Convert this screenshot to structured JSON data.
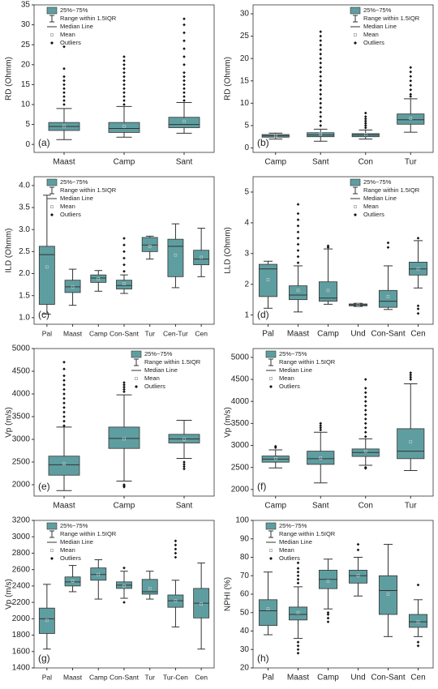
{
  "chart_data": [
    {
      "type": "box",
      "label": "(a)",
      "ylabel": "RD (Ohmm)",
      "color": "#5f9ea0",
      "legend_position": "top-left",
      "legend": [
        "25%~75%",
        "Range within 1.5IQR",
        "Median Line",
        "Mean",
        "Outliers"
      ],
      "ylim": [
        -2,
        35
      ],
      "yticks": [
        0,
        5,
        10,
        15,
        20,
        25,
        30,
        35
      ],
      "categories": [
        "Maast",
        "Camp",
        "Sant"
      ],
      "boxes": [
        {
          "whisker_low": 1.2,
          "q1": 3.5,
          "median": 4.5,
          "q3": 5.5,
          "whisker_high": 9,
          "mean": 4.6,
          "outliers": [
            10,
            11,
            12,
            13,
            14,
            15,
            16,
            17,
            19,
            24.5
          ]
        },
        {
          "whisker_low": 1.8,
          "q1": 3,
          "median": 4,
          "q3": 5.5,
          "whisker_high": 9.5,
          "mean": 4.5,
          "outliers": [
            10,
            11,
            12,
            13,
            14,
            15,
            16,
            17,
            18,
            19,
            20,
            21,
            22
          ]
        },
        {
          "whisker_low": 2.8,
          "q1": 4.2,
          "median": 5,
          "q3": 6.8,
          "whisker_high": 10.5,
          "mean": 5.8,
          "outliers": [
            11,
            12,
            13,
            14,
            15,
            16,
            17,
            18,
            20,
            22,
            24,
            26,
            28,
            30,
            31.5
          ]
        }
      ]
    },
    {
      "type": "box",
      "label": "(b)",
      "ylabel": "RD (Ohmm)",
      "color": "#5f9ea0",
      "legend_position": "top-right",
      "legend": [
        "25%~75%",
        "Range within 1.5IQR",
        "Median Line",
        "Mean",
        "Outliers"
      ],
      "ylim": [
        -1,
        32
      ],
      "yticks": [
        0,
        5,
        10,
        15,
        20,
        25,
        30
      ],
      "categories": [
        "Camp",
        "Sant",
        "Con",
        "Tur"
      ],
      "boxes": [
        {
          "whisker_low": 2,
          "q1": 2.4,
          "median": 2.7,
          "q3": 3,
          "whisker_high": 3.3,
          "mean": 2.7,
          "outliers": []
        },
        {
          "whisker_low": 1.5,
          "q1": 2.5,
          "median": 2.9,
          "q3": 3.4,
          "whisker_high": 4.2,
          "mean": 3.1,
          "outliers": [
            5,
            6,
            7,
            8,
            9,
            10,
            11,
            12,
            13,
            14,
            15,
            16,
            17,
            18,
            19,
            20,
            21,
            22,
            23,
            24,
            25,
            26
          ]
        },
        {
          "whisker_low": 2,
          "q1": 2.5,
          "median": 2.9,
          "q3": 3.2,
          "whisker_high": 4,
          "mean": 3,
          "outliers": [
            4.5,
            5,
            5.5,
            6,
            6.5,
            7,
            7.8
          ]
        },
        {
          "whisker_low": 3.5,
          "q1": 5.3,
          "median": 6.3,
          "q3": 7.6,
          "whisker_high": 11,
          "mean": 6.6,
          "outliers": [
            11.5,
            12,
            13,
            14,
            15,
            16,
            17,
            18
          ]
        }
      ]
    },
    {
      "type": "box",
      "label": "(c)",
      "ylabel": "ILD (Ohmm)",
      "color": "#5f9ea0",
      "legend_position": "top-left",
      "legend": [
        "25%~75%",
        "Range within 1.5IQR",
        "Median Line",
        "Mean",
        "Outliers"
      ],
      "ylim": [
        0.85,
        4.2
      ],
      "yticks": [
        {
          "value": 1,
          "label": "1.0"
        },
        1.5,
        {
          "value": 2,
          "label": "2.0"
        },
        2.5,
        {
          "value": 3,
          "label": "3.0"
        },
        3.5,
        {
          "value": 4,
          "label": "4.0"
        }
      ],
      "categories": [
        "Pal",
        "Maast",
        "Camp",
        "Con-Sant",
        "Tur",
        "Cen-Tur",
        "Cen"
      ],
      "boxes": [
        {
          "whisker_low": 1.08,
          "q1": 1.3,
          "median": 2.43,
          "q3": 2.62,
          "whisker_high": 3.78,
          "mean": 2.15,
          "outliers": []
        },
        {
          "whisker_low": 1.28,
          "q1": 1.57,
          "median": 1.7,
          "q3": 1.85,
          "whisker_high": 2.1,
          "mean": 1.7,
          "outliers": []
        },
        {
          "whisker_low": 1.6,
          "q1": 1.8,
          "median": 1.9,
          "q3": 1.97,
          "whisker_high": 2.07,
          "mean": 1.88,
          "outliers": []
        },
        {
          "whisker_low": 1.55,
          "q1": 1.65,
          "median": 1.73,
          "q3": 1.85,
          "whisker_high": 1.97,
          "mean": 1.77,
          "outliers": [
            2.05,
            2.2,
            2.35,
            2.5,
            2.65,
            2.8
          ]
        },
        {
          "whisker_low": 2.33,
          "q1": 2.5,
          "median": 2.65,
          "q3": 2.82,
          "whisker_high": 2.85,
          "mean": 2.62,
          "outliers": []
        },
        {
          "whisker_low": 1.68,
          "q1": 1.93,
          "median": 2.62,
          "q3": 2.78,
          "whisker_high": 3.13,
          "mean": 2.42,
          "outliers": []
        },
        {
          "whisker_low": 1.93,
          "q1": 2.2,
          "median": 2.33,
          "q3": 2.53,
          "whisker_high": 3.03,
          "mean": 2.37,
          "outliers": []
        }
      ]
    },
    {
      "type": "box",
      "label": "(d)",
      "ylabel": "LLD (Ohmm)",
      "color": "#5f9ea0",
      "legend_position": "top-right",
      "legend": [
        "25%~75%",
        "Range within 1.5IQR",
        "Median Line",
        "Mean",
        "Outliers"
      ],
      "ylim": [
        0.7,
        5.5
      ],
      "yticks": [
        1,
        2,
        3,
        4,
        5
      ],
      "categories": [
        "Pal",
        "Maast",
        "Camp",
        "Und",
        "Con-Sant",
        "Cen"
      ],
      "boxes": [
        {
          "whisker_low": 1.22,
          "q1": 1.6,
          "median": 2.5,
          "q3": 2.65,
          "whisker_high": 2.75,
          "mean": 2.15,
          "outliers": []
        },
        {
          "whisker_low": 1.1,
          "q1": 1.5,
          "median": 1.65,
          "q3": 1.95,
          "whisker_high": 2.6,
          "mean": 1.8,
          "outliers": [
            2.7,
            2.9,
            3.1,
            3.3,
            3.5,
            3.7,
            3.9,
            4.1,
            4.3,
            4.6
          ]
        },
        {
          "whisker_low": 1.35,
          "q1": 1.45,
          "median": 1.55,
          "q3": 2.08,
          "whisker_high": 3.15,
          "mean": 1.8,
          "outliers": [
            3.2,
            3.25
          ]
        },
        {
          "whisker_low": 1.28,
          "q1": 1.3,
          "median": 1.33,
          "q3": 1.36,
          "whisker_high": 1.38,
          "mean": 1.33,
          "outliers": []
        },
        {
          "whisker_low": 1.18,
          "q1": 1.25,
          "median": 1.45,
          "q3": 1.8,
          "whisker_high": 2.6,
          "mean": 1.6,
          "outliers": [
            3.2,
            3.35
          ]
        },
        {
          "whisker_low": 1.88,
          "q1": 2.3,
          "median": 2.5,
          "q3": 2.72,
          "whisker_high": 3.42,
          "mean": 2.5,
          "outliers": [
            1.05,
            1.2,
            1.3,
            3.5
          ]
        }
      ]
    },
    {
      "type": "box",
      "label": "(e)",
      "ylabel": "Vp (m/s)",
      "color": "#5f9ea0",
      "legend_position": "top-right",
      "legend": [
        "25%~75%",
        "Range within 1.5IQR",
        "Median Line",
        "Mean",
        "Outliers"
      ],
      "ylim": [
        1750,
        5000
      ],
      "yticks": [
        2000,
        2500,
        3000,
        3500,
        4000,
        4500,
        5000
      ],
      "categories": [
        "Maast",
        "Camp",
        "Sant"
      ],
      "boxes": [
        {
          "whisker_low": 1870,
          "q1": 2210,
          "median": 2440,
          "q3": 2630,
          "whisker_high": 3270,
          "mean": 2460,
          "outliers": [
            3300,
            3400,
            3500,
            3600,
            3700,
            3800,
            3900,
            4000,
            4100,
            4200,
            4300,
            4400,
            4550,
            4700
          ]
        },
        {
          "whisker_low": 2080,
          "q1": 2800,
          "median": 3020,
          "q3": 3270,
          "whisker_high": 3980,
          "mean": 3010,
          "outliers": [
            1950,
            1980,
            2000,
            4050,
            4100,
            4150,
            4200,
            4250
          ]
        },
        {
          "whisker_low": 2580,
          "q1": 2920,
          "median": 3010,
          "q3": 3110,
          "whisker_high": 3420,
          "mean": 3000,
          "outliers": [
            2350,
            2400,
            2450,
            2500
          ]
        }
      ]
    },
    {
      "type": "box",
      "label": "(f)",
      "ylabel": "Vp (m/s)",
      "color": "#5f9ea0",
      "legend_position": "top-left",
      "legend": [
        "25%~75%",
        "Range within 1.5IQR",
        "Median Line",
        "Mean",
        "Outliers"
      ],
      "ylim": [
        1850,
        5200
      ],
      "yticks": [
        2000,
        2500,
        3000,
        3500,
        4000,
        4500,
        5000
      ],
      "categories": [
        "Camp",
        "Sant",
        "Con",
        "Tur"
      ],
      "boxes": [
        {
          "whisker_low": 2490,
          "q1": 2620,
          "median": 2690,
          "q3": 2760,
          "whisker_high": 2900,
          "mean": 2700,
          "outliers": [
            2950,
            2980
          ]
        },
        {
          "whisker_low": 2150,
          "q1": 2570,
          "median": 2700,
          "q3": 2870,
          "whisker_high": 3300,
          "mean": 2720,
          "outliers": [
            3350,
            3400,
            3450,
            3500
          ]
        },
        {
          "whisker_low": 2550,
          "q1": 2750,
          "median": 2840,
          "q3": 2920,
          "whisker_high": 3150,
          "mean": 2870,
          "outliers": [
            2480,
            2500,
            3200,
            3300,
            3400,
            3500,
            3600,
            3700,
            3800,
            3900,
            4000,
            4100,
            4200,
            4300,
            4500
          ]
        },
        {
          "whisker_low": 2430,
          "q1": 2700,
          "median": 2870,
          "q3": 3380,
          "whisker_high": 4400,
          "mean": 3080,
          "outliers": [
            4500,
            4550,
            4600,
            4650
          ]
        }
      ]
    },
    {
      "type": "box",
      "label": "(g)",
      "ylabel": "Vp (m/s)",
      "color": "#5f9ea0",
      "legend_position": "top-left",
      "legend": [
        "25%~75%",
        "Range within 1.5IQR",
        "Median Line",
        "Mean",
        "Outliers"
      ],
      "ylim": [
        1400,
        3200
      ],
      "yticks": [
        1400,
        1600,
        1800,
        2000,
        2200,
        2400,
        2600,
        2800,
        3000,
        3200
      ],
      "categories": [
        "Pal",
        "Maast",
        "Camp",
        "Con-Sant",
        "Tur",
        "Tur-Cen",
        "Cen"
      ],
      "boxes": [
        {
          "whisker_low": 1630,
          "q1": 1820,
          "median": 2000,
          "q3": 2130,
          "whisker_high": 2420,
          "mean": 1980,
          "outliers": []
        },
        {
          "whisker_low": 2330,
          "q1": 2400,
          "median": 2450,
          "q3": 2510,
          "whisker_high": 2650,
          "mean": 2460,
          "outliers": []
        },
        {
          "whisker_low": 2240,
          "q1": 2470,
          "median": 2540,
          "q3": 2620,
          "whisker_high": 2720,
          "mean": 2540,
          "outliers": []
        },
        {
          "whisker_low": 2250,
          "q1": 2370,
          "median": 2410,
          "q3": 2450,
          "whisker_high": 2580,
          "mean": 2400,
          "outliers": [
            2200,
            2620
          ]
        },
        {
          "whisker_low": 2240,
          "q1": 2300,
          "median": 2330,
          "q3": 2480,
          "whisker_high": 2580,
          "mean": 2370,
          "outliers": []
        },
        {
          "whisker_low": 1900,
          "q1": 2140,
          "median": 2220,
          "q3": 2290,
          "whisker_high": 2470,
          "mean": 2220,
          "outliers": [
            2750,
            2800,
            2850,
            2900,
            2950
          ]
        },
        {
          "whisker_low": 1630,
          "q1": 2010,
          "median": 2190,
          "q3": 2370,
          "whisker_high": 2680,
          "mean": 2180,
          "outliers": []
        }
      ]
    },
    {
      "type": "box",
      "label": "(h)",
      "ylabel": "NPHI (%)",
      "color": "#5f9ea0",
      "legend_position": "top-left",
      "legend": [
        "25%~75%",
        "Range within 1.5IQR",
        "Median Line",
        "Mean",
        "Outliers"
      ],
      "ylim": [
        20,
        100
      ],
      "yticks": [
        20,
        30,
        40,
        50,
        60,
        70,
        80,
        90,
        100
      ],
      "categories": [
        "Pal",
        "Maast",
        "Camp",
        "Und",
        "Con-Sant",
        "Cen"
      ],
      "boxes": [
        {
          "whisker_low": 38,
          "q1": 43,
          "median": 51,
          "q3": 57,
          "whisker_high": 72,
          "mean": 52,
          "outliers": []
        },
        {
          "whisker_low": 36,
          "q1": 46,
          "median": 49,
          "q3": 53,
          "whisker_high": 64,
          "mean": 50,
          "outliers": [
            28,
            30,
            32,
            34,
            66,
            68,
            70,
            72,
            74,
            77
          ]
        },
        {
          "whisker_low": 52,
          "q1": 63,
          "median": 68,
          "q3": 73,
          "whisker_high": 79,
          "mean": 67,
          "outliers": [
            45,
            47,
            49,
            50
          ]
        },
        {
          "whisker_low": 59,
          "q1": 66,
          "median": 70,
          "q3": 73,
          "whisker_high": 80,
          "mean": 70,
          "outliers": [
            84,
            87
          ]
        },
        {
          "whisker_low": 37,
          "q1": 49,
          "median": 62,
          "q3": 70,
          "whisker_high": 87,
          "mean": 60,
          "outliers": []
        },
        {
          "whisker_low": 37,
          "q1": 42,
          "median": 45,
          "q3": 49,
          "whisker_high": 57,
          "mean": 45,
          "outliers": [
            32,
            34,
            65
          ]
        }
      ]
    }
  ]
}
